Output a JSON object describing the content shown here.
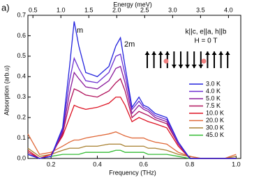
{
  "panel_label": "a)",
  "chart_data": {
    "type": "line",
    "xlabel": "Frequency (THz)",
    "ylabel": "Absorption (arb.u)",
    "x2label": "Energy (meV)",
    "xlim": [
      0.1,
      1.02
    ],
    "ylim": [
      0,
      0.7
    ],
    "x2lim": [
      0.41,
      4.22
    ],
    "xticks": [
      0.2,
      0.4,
      0.6,
      0.8,
      {
        "value": 1,
        "label": "1.0"
      }
    ],
    "yticks": [
      {
        "value": 0,
        "label": "0.0"
      },
      0.1,
      0.2,
      0.3,
      0.4,
      0.5,
      0.6,
      0.7
    ],
    "x2ticks": [
      0.5,
      {
        "value": 1,
        "label": "1.0"
      },
      1.5,
      {
        "value": 2,
        "label": "2.0"
      },
      2.5,
      {
        "value": 3,
        "label": "3.0"
      },
      3.5,
      {
        "value": 4,
        "label": "4.0"
      }
    ],
    "annotations": [
      "m",
      "2m",
      "k||c, e||a, h||b",
      "H = 0 T"
    ],
    "x": [
      0.1,
      0.15,
      0.2,
      0.25,
      0.28,
      0.3,
      0.32,
      0.35,
      0.4,
      0.45,
      0.48,
      0.5,
      0.52,
      0.55,
      0.58,
      0.6,
      0.62,
      0.65,
      0.7,
      0.75,
      0.8,
      0.85,
      0.9,
      0.95,
      1.0
    ],
    "series": [
      {
        "name": "3.0 K",
        "color": "#2222dd",
        "values": [
          0.02,
          0,
          0.01,
          0.15,
          0.45,
          0.67,
          0.55,
          0.42,
          0.4,
          0.45,
          0.55,
          0.59,
          0.45,
          0.25,
          0.3,
          0.26,
          0.25,
          0.22,
          0.2,
          0.08,
          0,
          0,
          0,
          0,
          0
        ]
      },
      {
        "name": "4.0 K",
        "color": "#6a2cd0",
        "values": [
          0.02,
          0,
          0.01,
          0.14,
          0.38,
          0.49,
          0.44,
          0.38,
          0.37,
          0.42,
          0.5,
          0.51,
          0.41,
          0.24,
          0.28,
          0.25,
          0.24,
          0.21,
          0.19,
          0.08,
          0,
          0,
          0,
          0,
          0
        ]
      },
      {
        "name": "5.0 K",
        "color": "#8a1a9a",
        "values": [
          0.02,
          0,
          0.01,
          0.13,
          0.32,
          0.42,
          0.39,
          0.35,
          0.34,
          0.38,
          0.44,
          0.45,
          0.37,
          0.22,
          0.26,
          0.24,
          0.23,
          0.2,
          0.18,
          0.07,
          0,
          0,
          0,
          0,
          0
        ]
      },
      {
        "name": "7.5 K",
        "color": "#b0105a",
        "values": [
          0.03,
          0,
          0.01,
          0.12,
          0.27,
          0.34,
          0.33,
          0.31,
          0.3,
          0.33,
          0.37,
          0.39,
          0.33,
          0.2,
          0.23,
          0.22,
          0.21,
          0.19,
          0.17,
          0.07,
          0,
          0,
          0,
          0,
          0
        ]
      },
      {
        "name": "10.0 K",
        "color": "#dd1020",
        "values": [
          0.04,
          0,
          0.02,
          0.11,
          0.2,
          0.26,
          0.25,
          0.24,
          0.25,
          0.27,
          0.3,
          0.3,
          0.26,
          0.18,
          0.2,
          0.19,
          0.18,
          0.17,
          0.15,
          0.06,
          0,
          0,
          0,
          0,
          0
        ]
      },
      {
        "name": "20.0 K",
        "color": "#e06838",
        "values": [
          0.12,
          0.02,
          0.03,
          0.06,
          0.08,
          0.09,
          0.09,
          0.1,
          0.11,
          0.12,
          0.13,
          0.12,
          0.11,
          0.1,
          0.1,
          0.1,
          0.09,
          0.08,
          0.07,
          0.03,
          0.01,
          0,
          0,
          0,
          0.02
        ]
      },
      {
        "name": "30.0 K",
        "color": "#a88030",
        "values": [
          0.05,
          0.01,
          0.02,
          0.04,
          0.05,
          0.05,
          0.05,
          0.06,
          0.06,
          0.07,
          0.07,
          0.07,
          0.06,
          0.06,
          0.06,
          0.06,
          0.05,
          0.05,
          0.04,
          0.02,
          0.01,
          0,
          0,
          0,
          0.01
        ]
      },
      {
        "name": "45.0 K",
        "color": "#33bb33",
        "values": [
          0.02,
          0,
          0.01,
          0.02,
          0.02,
          0.02,
          0.02,
          0.03,
          0.03,
          0.03,
          0.04,
          0.04,
          0.03,
          0.03,
          0.03,
          0.03,
          0.02,
          0.02,
          0.02,
          0.01,
          0,
          0,
          0,
          0,
          0
        ]
      }
    ]
  }
}
